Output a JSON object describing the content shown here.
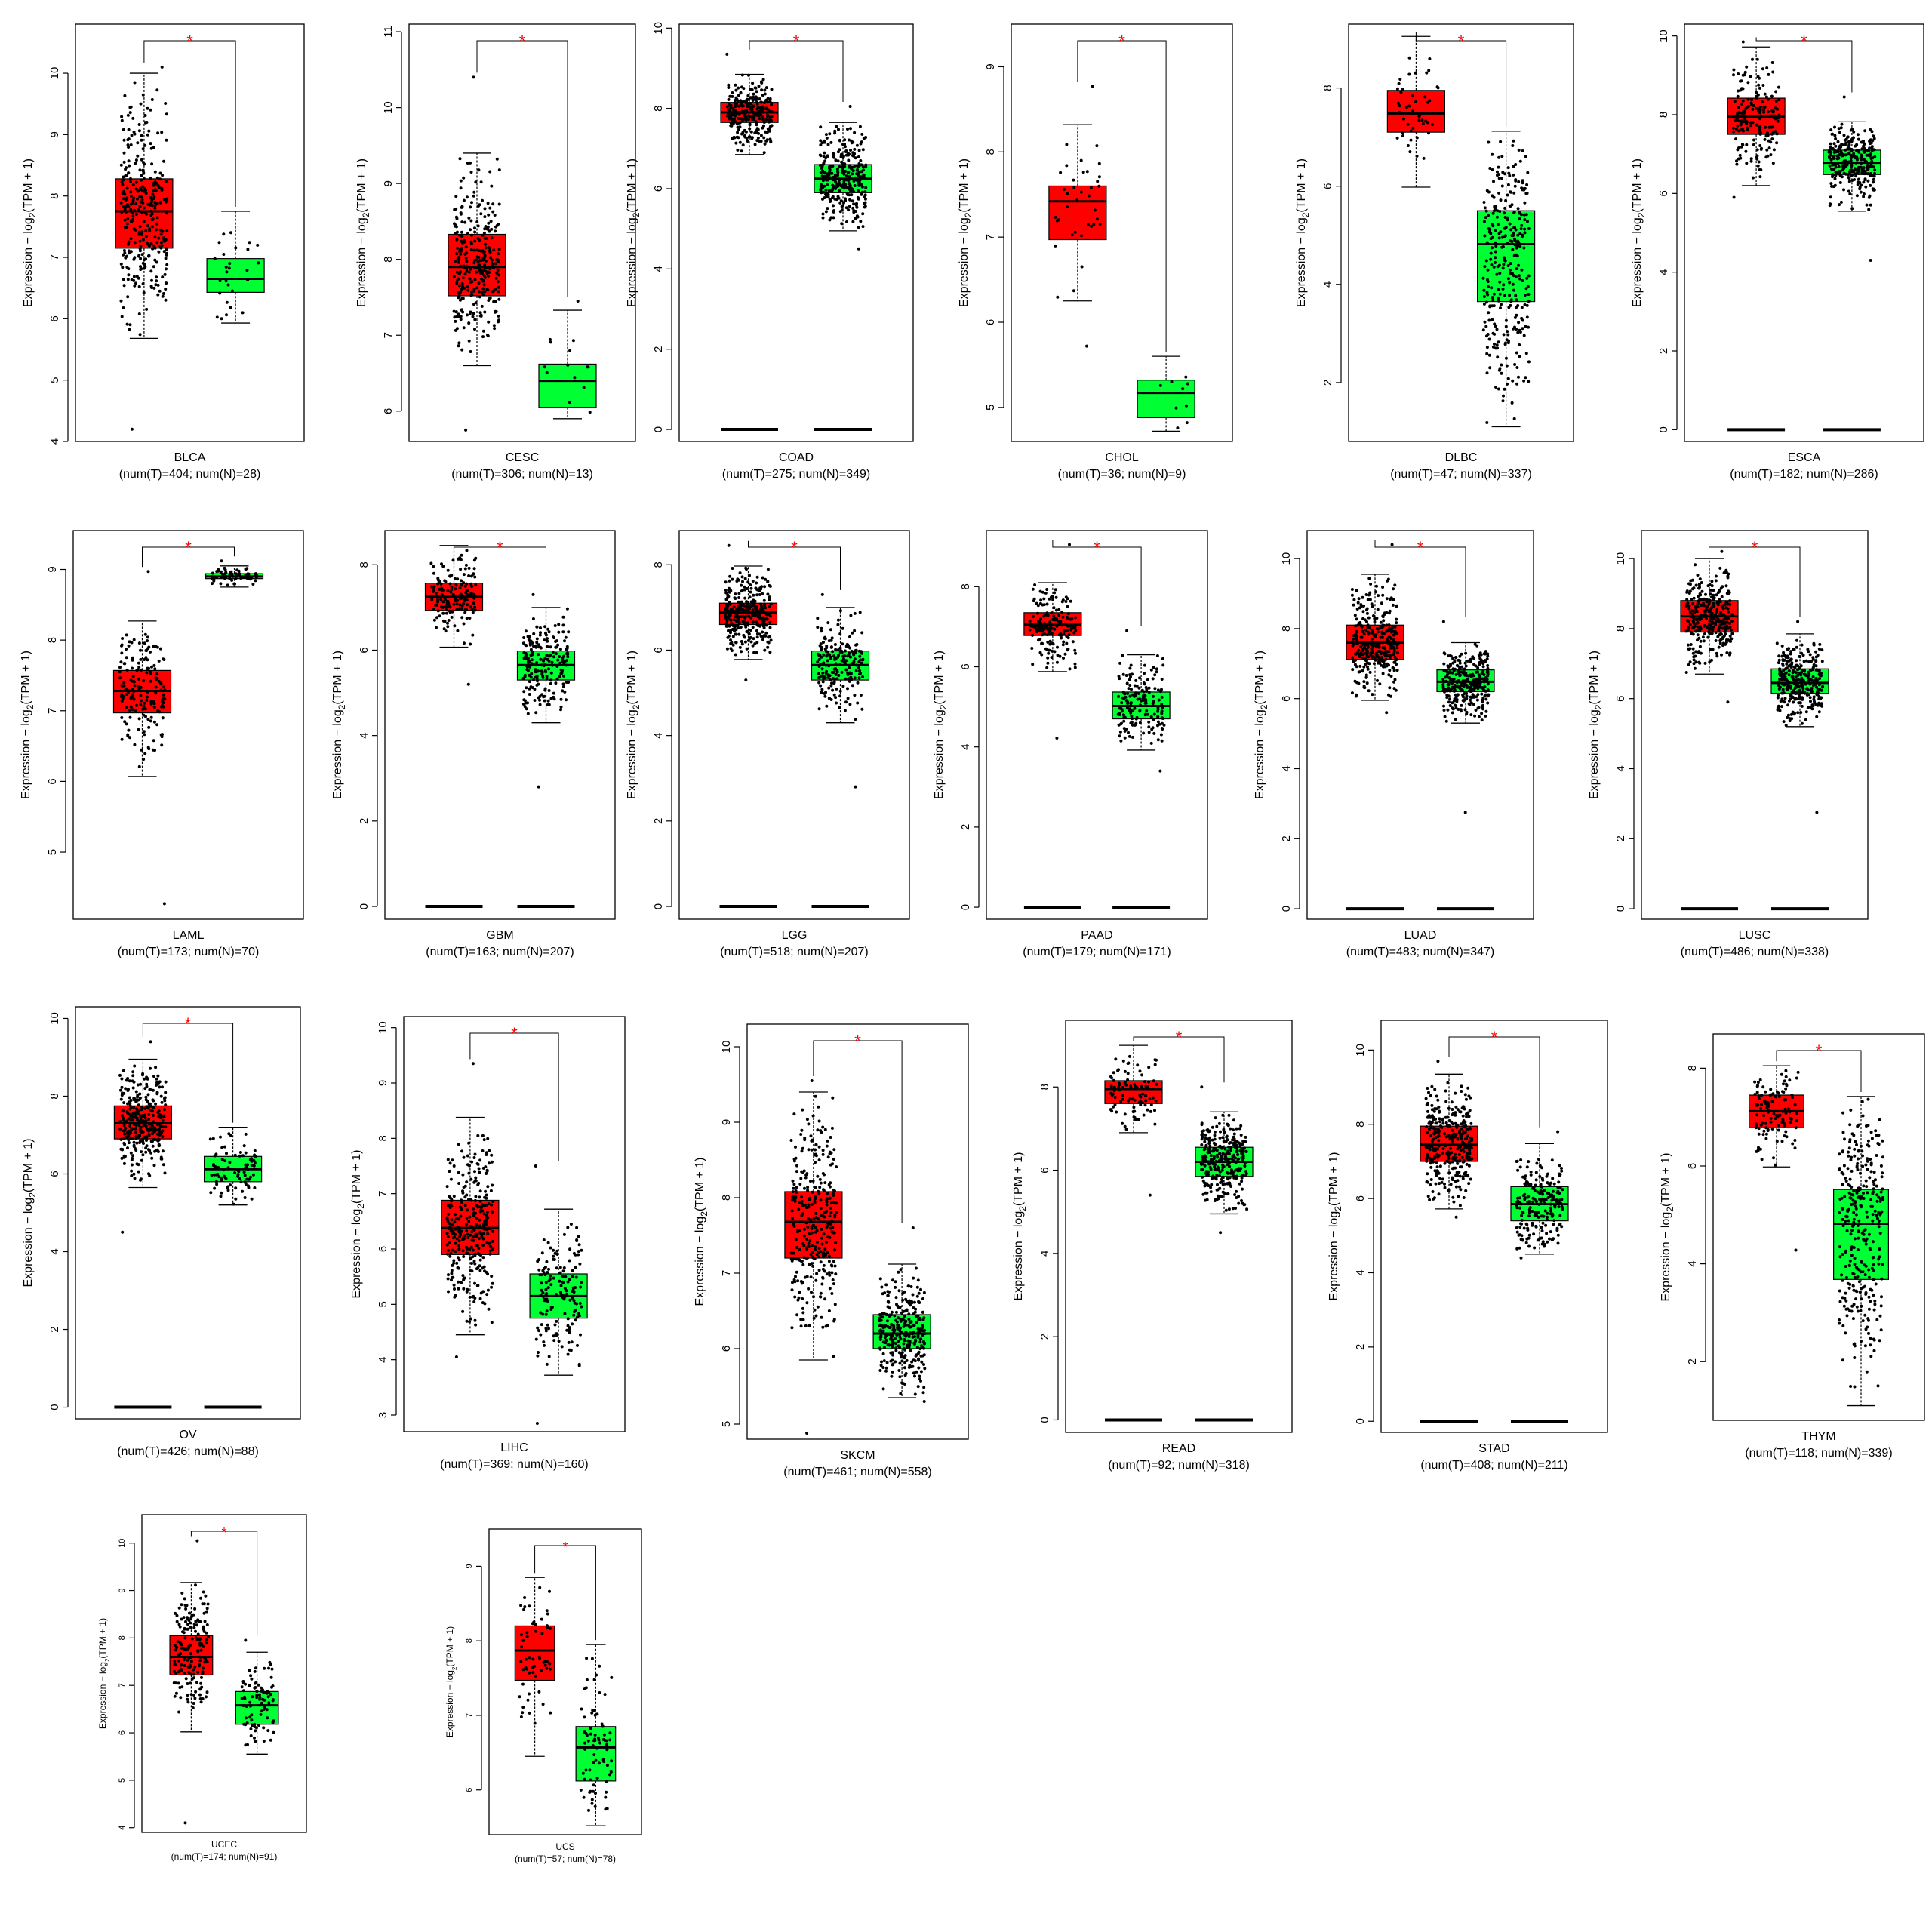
{
  "figure": {
    "colors": {
      "tumor": "#ff0000",
      "normal": "#00ff33",
      "significance": "#ff0000",
      "points": "#000000"
    },
    "y_label": {
      "main": "Expression − log",
      "sub": "2",
      "tail": "(TPM + 1)"
    },
    "significance_mark": "*"
  },
  "chart_data": [
    {
      "type": "box",
      "cancer": "BLCA",
      "counts": "(num(T)=404; num(N)=28)",
      "ylim": [
        4,
        10.8
      ],
      "yticks": [
        4,
        5,
        6,
        7,
        8,
        9,
        10
      ],
      "zero_line": false,
      "tumor": {
        "q1": 7.15,
        "median": 7.75,
        "q3": 8.28,
        "whisker_low": 5.68,
        "whisker_high": 10.0,
        "n_points": 404,
        "min": 4.2,
        "max": 10.1
      },
      "normal": {
        "q1": 6.43,
        "median": 6.65,
        "q3": 6.98,
        "whisker_low": 5.93,
        "whisker_high": 7.75,
        "n_points": 28,
        "min": 5.93,
        "max": 7.75
      }
    },
    {
      "type": "box",
      "cancer": "CESC",
      "counts": "(num(T)=306; num(N)=13)",
      "ylim": [
        5.6,
        11.1
      ],
      "yticks": [
        6,
        7,
        8,
        9,
        10,
        11
      ],
      "zero_line": false,
      "tumor": {
        "q1": 7.52,
        "median": 7.9,
        "q3": 8.33,
        "whisker_low": 6.6,
        "whisker_high": 9.4,
        "n_points": 306,
        "min": 5.75,
        "max": 10.4
      },
      "normal": {
        "q1": 6.05,
        "median": 6.4,
        "q3": 6.62,
        "whisker_low": 5.9,
        "whisker_high": 7.33,
        "n_points": 13,
        "min": 5.9,
        "max": 7.45
      }
    },
    {
      "type": "box",
      "cancer": "COAD",
      "counts": "(num(T)=275; num(N)=349)",
      "ylim": [
        -0.3,
        10.1
      ],
      "yticks": [
        0,
        2,
        4,
        6,
        8,
        10
      ],
      "zero_line": true,
      "tumor": {
        "q1": 7.65,
        "median": 7.9,
        "q3": 8.15,
        "whisker_low": 6.85,
        "whisker_high": 8.85,
        "n_points": 275,
        "min": 6.85,
        "max": 9.35
      },
      "normal": {
        "q1": 5.9,
        "median": 6.25,
        "q3": 6.6,
        "whisker_low": 4.95,
        "whisker_high": 7.65,
        "n_points": 349,
        "min": 4.5,
        "max": 8.05
      }
    },
    {
      "type": "box",
      "cancer": "CHOL",
      "counts": "(num(T)=36; num(N)=9)",
      "ylim": [
        4.6,
        9.5
      ],
      "yticks": [
        5,
        6,
        7,
        8,
        9
      ],
      "zero_line": false,
      "tumor": {
        "q1": 6.97,
        "median": 7.42,
        "q3": 7.6,
        "whisker_low": 6.25,
        "whisker_high": 8.32,
        "n_points": 36,
        "min": 5.72,
        "max": 8.77
      },
      "normal": {
        "q1": 4.88,
        "median": 5.17,
        "q3": 5.32,
        "whisker_low": 4.72,
        "whisker_high": 5.6,
        "n_points": 9,
        "min": 4.72,
        "max": 5.6
      }
    },
    {
      "type": "box",
      "cancer": "DLBC",
      "counts": "(num(T)=47; num(N)=337)",
      "ylim": [
        0.8,
        9.3
      ],
      "yticks": [
        2,
        4,
        6,
        8
      ],
      "zero_line": false,
      "tumor": {
        "q1": 7.1,
        "median": 7.48,
        "q3": 7.95,
        "whisker_low": 5.98,
        "whisker_high": 9.05,
        "n_points": 47,
        "min": 5.98,
        "max": 9.05
      },
      "normal": {
        "q1": 3.65,
        "median": 4.82,
        "q3": 5.5,
        "whisker_low": 1.1,
        "whisker_high": 7.12,
        "n_points": 337,
        "min": 1.1,
        "max": 7.12
      }
    },
    {
      "type": "box",
      "cancer": "ESCA",
      "counts": "(num(T)=182; num(N)=286)",
      "ylim": [
        -0.3,
        10.3
      ],
      "yticks": [
        0,
        2,
        4,
        6,
        8,
        10
      ],
      "zero_line": true,
      "tumor": {
        "q1": 7.5,
        "median": 7.95,
        "q3": 8.42,
        "whisker_low": 6.2,
        "whisker_high": 9.72,
        "n_points": 182,
        "min": 5.9,
        "max": 9.85
      },
      "normal": {
        "q1": 6.48,
        "median": 6.78,
        "q3": 7.1,
        "whisker_low": 5.55,
        "whisker_high": 7.82,
        "n_points": 286,
        "min": 4.3,
        "max": 8.45
      }
    },
    {
      "type": "box",
      "cancer": "LAML",
      "counts": "(num(T)=173; num(N)=70)",
      "ylim": [
        4.05,
        9.55
      ],
      "yticks": [
        5,
        6,
        7,
        8,
        9
      ],
      "zero_line": false,
      "tumor": {
        "q1": 6.97,
        "median": 7.28,
        "q3": 7.57,
        "whisker_low": 6.07,
        "whisker_high": 8.27,
        "n_points": 173,
        "min": 4.27,
        "max": 8.97
      },
      "normal": {
        "q1": 8.87,
        "median": 8.9,
        "q3": 8.94,
        "whisker_low": 8.75,
        "whisker_high": 9.05,
        "n_points": 70,
        "min": 8.75,
        "max": 9.12
      }
    },
    {
      "type": "box",
      "cancer": "GBM",
      "counts": "(num(T)=163; num(N)=207)",
      "ylim": [
        -0.3,
        8.8
      ],
      "yticks": [
        0,
        2,
        4,
        6,
        8
      ],
      "zero_line": true,
      "tumor": {
        "q1": 6.93,
        "median": 7.25,
        "q3": 7.57,
        "whisker_low": 6.07,
        "whisker_high": 8.45,
        "n_points": 163,
        "min": 5.2,
        "max": 8.45
      },
      "normal": {
        "q1": 5.3,
        "median": 5.65,
        "q3": 5.98,
        "whisker_low": 4.3,
        "whisker_high": 7.0,
        "n_points": 207,
        "min": 2.8,
        "max": 7.3
      }
    },
    {
      "type": "box",
      "cancer": "LGG",
      "counts": "(num(T)=518; num(N)=207)",
      "ylim": [
        -0.3,
        8.8
      ],
      "yticks": [
        0,
        2,
        4,
        6,
        8
      ],
      "zero_line": true,
      "tumor": {
        "q1": 6.6,
        "median": 6.88,
        "q3": 7.1,
        "whisker_low": 5.78,
        "whisker_high": 7.97,
        "n_points": 518,
        "min": 5.3,
        "max": 8.45
      },
      "normal": {
        "q1": 5.3,
        "median": 5.65,
        "q3": 5.98,
        "whisker_low": 4.3,
        "whisker_high": 7.0,
        "n_points": 207,
        "min": 2.8,
        "max": 7.3
      }
    },
    {
      "type": "box",
      "cancer": "PAAD",
      "counts": "(num(T)=179; num(N)=171)",
      "ylim": [
        -0.3,
        9.4
      ],
      "yticks": [
        0,
        2,
        4,
        6,
        8
      ],
      "zero_line": true,
      "tumor": {
        "q1": 6.78,
        "median": 7.05,
        "q3": 7.35,
        "whisker_low": 5.88,
        "whisker_high": 8.1,
        "n_points": 179,
        "min": 4.22,
        "max": 9.05
      },
      "normal": {
        "q1": 4.7,
        "median": 5.02,
        "q3": 5.37,
        "whisker_low": 3.92,
        "whisker_high": 6.3,
        "n_points": 171,
        "min": 3.4,
        "max": 6.9
      }
    },
    {
      "type": "box",
      "cancer": "LUAD",
      "counts": "(num(T)=483; num(N)=347)",
      "ylim": [
        -0.3,
        10.8
      ],
      "yticks": [
        0,
        2,
        4,
        6,
        8,
        10
      ],
      "zero_line": true,
      "tumor": {
        "q1": 7.12,
        "median": 7.6,
        "q3": 8.1,
        "whisker_low": 5.95,
        "whisker_high": 9.55,
        "n_points": 483,
        "min": 5.6,
        "max": 10.4
      },
      "normal": {
        "q1": 6.2,
        "median": 6.48,
        "q3": 6.82,
        "whisker_low": 5.3,
        "whisker_high": 7.6,
        "n_points": 347,
        "min": 2.75,
        "max": 8.2
      }
    },
    {
      "type": "box",
      "cancer": "LUSC",
      "counts": "(num(T)=486; num(N)=338)",
      "ylim": [
        -0.3,
        10.8
      ],
      "yticks": [
        0,
        2,
        4,
        6,
        8,
        10
      ],
      "zero_line": true,
      "tumor": {
        "q1": 7.9,
        "median": 8.35,
        "q3": 8.8,
        "whisker_low": 6.7,
        "whisker_high": 10.0,
        "n_points": 486,
        "min": 5.9,
        "max": 10.2
      },
      "normal": {
        "q1": 6.15,
        "median": 6.45,
        "q3": 6.85,
        "whisker_low": 5.2,
        "whisker_high": 7.85,
        "n_points": 338,
        "min": 2.75,
        "max": 8.2
      }
    },
    {
      "type": "box",
      "cancer": "OV",
      "counts": "(num(T)=426; num(N)=88)",
      "ylim": [
        -0.3,
        10.3
      ],
      "yticks": [
        0,
        2,
        4,
        6,
        8,
        10
      ],
      "zero_line": true,
      "tumor": {
        "q1": 6.9,
        "median": 7.3,
        "q3": 7.75,
        "whisker_low": 5.65,
        "whisker_high": 8.95,
        "n_points": 426,
        "min": 4.5,
        "max": 9.4
      },
      "normal": {
        "q1": 5.8,
        "median": 6.12,
        "q3": 6.45,
        "whisker_low": 5.2,
        "whisker_high": 7.2,
        "n_points": 88,
        "min": 5.2,
        "max": 7.2
      }
    },
    {
      "type": "box",
      "cancer": "LIHC",
      "counts": "(num(T)=369; num(N)=160)",
      "ylim": [
        2.7,
        10.2
      ],
      "yticks": [
        3,
        4,
        5,
        6,
        7,
        8,
        9,
        10
      ],
      "zero_line": false,
      "tumor": {
        "q1": 5.9,
        "median": 6.38,
        "q3": 6.88,
        "whisker_low": 4.45,
        "whisker_high": 8.38,
        "n_points": 369,
        "min": 4.05,
        "max": 9.35
      },
      "normal": {
        "q1": 4.75,
        "median": 5.15,
        "q3": 5.55,
        "whisker_low": 3.72,
        "whisker_high": 6.72,
        "n_points": 160,
        "min": 2.85,
        "max": 7.5
      }
    },
    {
      "type": "box",
      "cancer": "SKCM",
      "counts": "(num(T)=461; num(N)=558)",
      "ylim": [
        4.8,
        10.3
      ],
      "yticks": [
        5,
        6,
        7,
        8,
        9,
        10
      ],
      "zero_line": false,
      "tumor": {
        "q1": 7.2,
        "median": 7.68,
        "q3": 8.08,
        "whisker_low": 5.85,
        "whisker_high": 9.4,
        "n_points": 461,
        "min": 4.88,
        "max": 9.55
      },
      "normal": {
        "q1": 6.0,
        "median": 6.2,
        "q3": 6.45,
        "whisker_low": 5.35,
        "whisker_high": 7.12,
        "n_points": 558,
        "min": 5.3,
        "max": 7.6
      }
    },
    {
      "type": "box",
      "cancer": "READ",
      "counts": "(num(T)=92; num(N)=318)",
      "ylim": [
        -0.3,
        9.6
      ],
      "yticks": [
        0,
        2,
        4,
        6,
        8
      ],
      "zero_line": true,
      "tumor": {
        "q1": 7.6,
        "median": 7.95,
        "q3": 8.15,
        "whisker_low": 6.9,
        "whisker_high": 9.0,
        "n_points": 92,
        "min": 5.4,
        "max": 9.0
      },
      "normal": {
        "q1": 5.85,
        "median": 6.2,
        "q3": 6.55,
        "whisker_low": 4.95,
        "whisker_high": 7.4,
        "n_points": 318,
        "min": 4.5,
        "max": 8.0
      }
    },
    {
      "type": "box",
      "cancer": "STAD",
      "counts": "(num(T)=408; num(N)=211)",
      "ylim": [
        -0.3,
        10.8
      ],
      "yticks": [
        0,
        2,
        4,
        6,
        8,
        10
      ],
      "zero_line": true,
      "tumor": {
        "q1": 7.0,
        "median": 7.45,
        "q3": 7.95,
        "whisker_low": 5.72,
        "whisker_high": 9.35,
        "n_points": 408,
        "min": 5.5,
        "max": 9.7
      },
      "normal": {
        "q1": 5.4,
        "median": 5.85,
        "q3": 6.32,
        "whisker_low": 4.5,
        "whisker_high": 7.48,
        "n_points": 211,
        "min": 4.4,
        "max": 7.8
      }
    },
    {
      "type": "box",
      "cancer": "THYM",
      "counts": "(num(T)=118; num(N)=339)",
      "ylim": [
        0.8,
        8.7
      ],
      "yticks": [
        2,
        4,
        6,
        8
      ],
      "zero_line": false,
      "tumor": {
        "q1": 6.78,
        "median": 7.12,
        "q3": 7.45,
        "whisker_low": 5.98,
        "whisker_high": 8.05,
        "n_points": 118,
        "min": 4.28,
        "max": 8.05
      },
      "normal": {
        "q1": 3.68,
        "median": 4.82,
        "q3": 5.52,
        "whisker_low": 1.1,
        "whisker_high": 7.42,
        "n_points": 339,
        "min": 1.1,
        "max": 7.42
      }
    },
    {
      "type": "box",
      "cancer": "UCEC",
      "counts": "(num(T)=174; num(N)=91)",
      "ylim": [
        3.9,
        10.6
      ],
      "yticks": [
        4,
        5,
        6,
        7,
        8,
        9,
        10
      ],
      "zero_line": false,
      "tumor": {
        "q1": 7.22,
        "median": 7.6,
        "q3": 8.05,
        "whisker_low": 6.02,
        "whisker_high": 9.17,
        "n_points": 174,
        "min": 4.1,
        "max": 10.05
      },
      "normal": {
        "q1": 6.18,
        "median": 6.58,
        "q3": 6.87,
        "whisker_low": 5.55,
        "whisker_high": 7.7,
        "n_points": 91,
        "min": 5.55,
        "max": 7.95
      }
    },
    {
      "type": "box",
      "cancer": "UCS",
      "counts": "(num(T)=57; num(N)=78)",
      "ylim": [
        5.4,
        9.5
      ],
      "yticks": [
        6,
        7,
        8,
        9
      ],
      "zero_line": false,
      "tumor": {
        "q1": 7.47,
        "median": 7.87,
        "q3": 8.2,
        "whisker_low": 6.45,
        "whisker_high": 8.85,
        "n_points": 57,
        "min": 6.45,
        "max": 8.85
      },
      "normal": {
        "q1": 6.12,
        "median": 6.57,
        "q3": 6.85,
        "whisker_low": 5.52,
        "whisker_high": 7.95,
        "n_points": 78,
        "min": 5.52,
        "max": 7.95
      }
    }
  ]
}
